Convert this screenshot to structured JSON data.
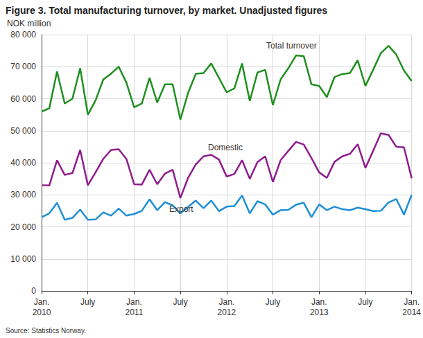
{
  "chart_data": {
    "type": "line",
    "title": "Figure 3. Total manufacturing turnover, by market. Unadjusted figures",
    "ylabel": "NOK million",
    "source": "Source: Statistics Norway.",
    "categories": [
      "Jan.\n2010",
      null,
      null,
      null,
      null,
      null,
      "July",
      null,
      null,
      null,
      null,
      null,
      "Jan.\n2011",
      null,
      null,
      null,
      null,
      null,
      "July",
      null,
      null,
      null,
      null,
      null,
      "Jan.\n2012",
      null,
      null,
      null,
      null,
      null,
      "July",
      null,
      null,
      null,
      null,
      null,
      "Jan.\n2013",
      null,
      null,
      null,
      null,
      null,
      "July",
      null,
      null,
      null,
      null,
      null,
      "Jan.\n2014"
    ],
    "ylim": [
      0,
      80000
    ],
    "yticks": [
      0,
      {
        "value": 10000,
        "label": "10 000"
      },
      {
        "value": 20000,
        "label": "20 000"
      },
      {
        "value": 30000,
        "label": "30 000"
      },
      {
        "value": 40000,
        "label": "40 000"
      },
      {
        "value": 50000,
        "label": "50 000"
      },
      {
        "value": 60000,
        "label": "60 000"
      },
      {
        "value": 70000,
        "label": "70 000"
      },
      {
        "value": 80000,
        "label": "80 000"
      }
    ],
    "grid": true,
    "series": [
      {
        "name": "Total turnover",
        "color": "#1f8f1f",
        "values": [
          56000,
          57000,
          68500,
          58500,
          60000,
          69500,
          55000,
          59500,
          66000,
          67800,
          70000,
          65000,
          57300,
          58500,
          66500,
          58800,
          64500,
          64500,
          53500,
          61800,
          67800,
          68000,
          71000,
          66500,
          62000,
          63200,
          71000,
          59300,
          68200,
          69000,
          58000,
          66000,
          69500,
          73500,
          73300,
          64500,
          64000,
          60500,
          66800,
          67700,
          68000,
          72000,
          64000,
          69000,
          74200,
          76500,
          73800,
          68800,
          65500
        ]
      },
      {
        "name": "Domestic",
        "color": "#8e1c8e",
        "values": [
          33000,
          32900,
          40800,
          36200,
          36800,
          44000,
          33000,
          37000,
          41200,
          44000,
          44200,
          41200,
          33300,
          33200,
          37800,
          33300,
          36600,
          37800,
          29000,
          35300,
          39500,
          42000,
          42500,
          41000,
          35700,
          36500,
          40800,
          35000,
          40200,
          42000,
          34000,
          40800,
          43700,
          46500,
          45700,
          41500,
          37000,
          35300,
          40300,
          42000,
          42800,
          45800,
          38400,
          43700,
          49200,
          48700,
          45000,
          44800,
          35200
        ]
      },
      {
        "name": "Export",
        "color": "#1e8fd6",
        "values": [
          23000,
          24200,
          27500,
          22200,
          22800,
          25400,
          22200,
          22300,
          24500,
          23500,
          25700,
          23500,
          24000,
          25000,
          28600,
          25200,
          27700,
          26700,
          24200,
          26200,
          28200,
          25800,
          28200,
          24900,
          26300,
          26500,
          29800,
          24200,
          28000,
          27000,
          23800,
          25200,
          25300,
          26900,
          27500,
          23000,
          27000,
          25200,
          26300,
          25500,
          25200,
          26000,
          25500,
          24900,
          25000,
          27600,
          28700,
          23800,
          30000
        ]
      }
    ]
  }
}
